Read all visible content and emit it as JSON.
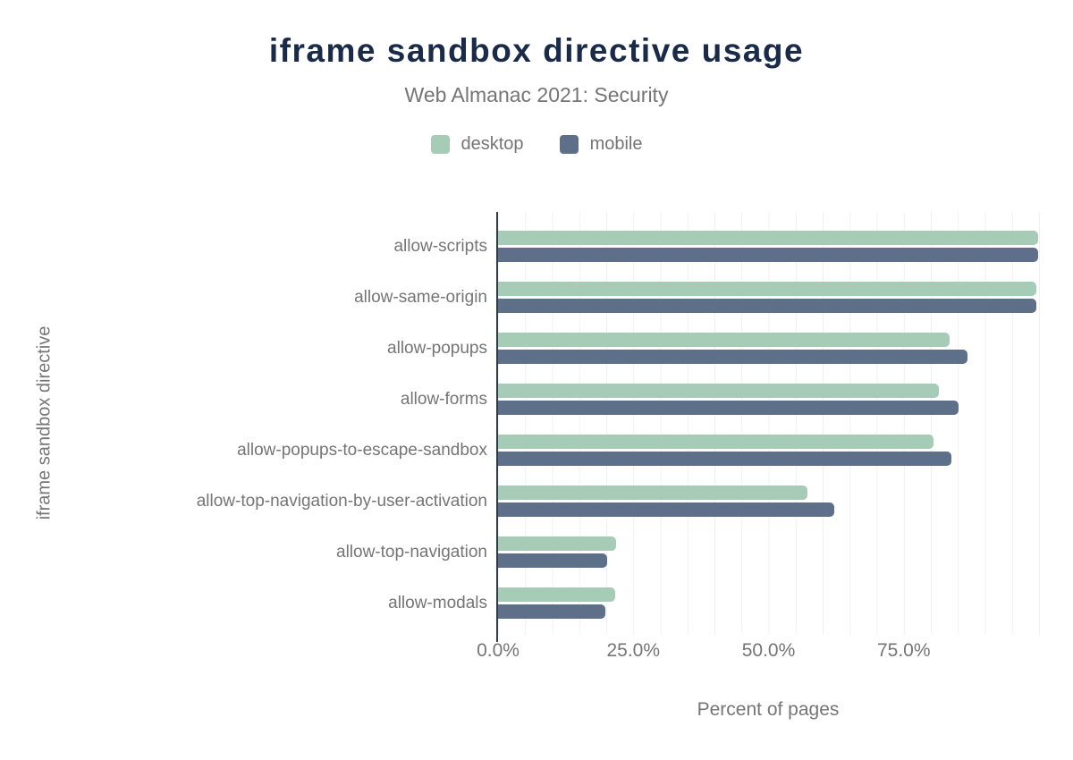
{
  "title": "iframe sandbox directive usage",
  "subtitle": "Web Almanac 2021: Security",
  "legend": {
    "items": [
      {
        "label": "desktop",
        "color": "#a6cbb7"
      },
      {
        "label": "mobile",
        "color": "#5e7089"
      }
    ]
  },
  "colors": {
    "title_navy": "#1a2b49",
    "text_gray": "#757575",
    "gridline": "#f0f0f3",
    "axis_line": "#2e3a4e",
    "desktop_bar": "#a6cbb7",
    "mobile_bar": "#5e7089"
  },
  "chart_data": {
    "type": "bar",
    "orientation": "horizontal",
    "title": "iframe sandbox directive usage",
    "subtitle": "Web Almanac 2021: Security",
    "xlabel": "Percent of pages",
    "ylabel": "iframe sandbox directive",
    "xlim": [
      0,
      100
    ],
    "x_ticks": [
      "0.0%",
      "25.0%",
      "50.0%",
      "75.0%"
    ],
    "grid": "vertical gridlines every 5%, legend top center",
    "categories": [
      "allow-scripts",
      "allow-same-origin",
      "allow-popups",
      "allow-forms",
      "allow-popups-to-escape-sandbox",
      "allow-top-navigation-by-user-activation",
      "allow-top-navigation",
      "allow-modals"
    ],
    "series": [
      {
        "name": "desktop",
        "color": "#a6cbb7",
        "values": [
          99.9,
          99.5,
          83.5,
          81.5,
          80.5,
          57.2,
          21.8,
          21.7
        ]
      },
      {
        "name": "mobile",
        "color": "#5e7089",
        "values": [
          99.9,
          99.5,
          86.8,
          85.1,
          83.8,
          62.1,
          20.2,
          19.8
        ]
      }
    ]
  }
}
